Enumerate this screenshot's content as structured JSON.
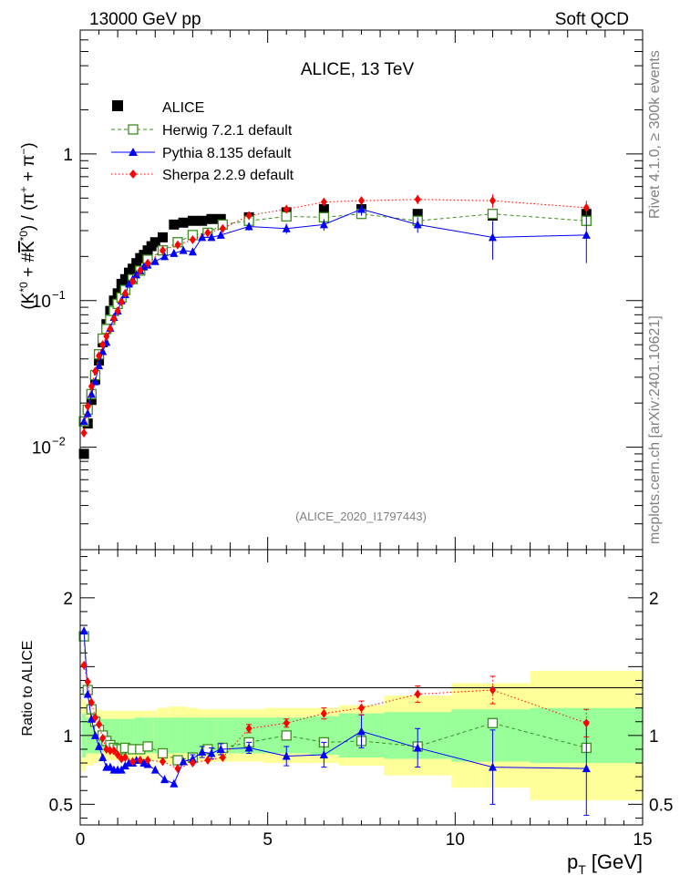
{
  "header": {
    "left": "13000 GeV pp",
    "right": "Soft QCD"
  },
  "side_labels": {
    "rivet": "Rivet 4.1.0, ≥ 300k events",
    "mcplots": "mcplots.cern.ch [arXiv:2401.10621]"
  },
  "chart_data": {
    "type": "scatter",
    "title": "ALICE, 13 TeV",
    "analysis_id": "(ALICE_2020_I1797443)",
    "xlabel": "p",
    "xlabel_sub": "T",
    "xlabel_unit": "[GeV]",
    "ylabel": "(K*0 + #K*0) / (π+ + π−)",
    "ylabel_ratio": "Ratio to ALICE",
    "xlim": [
      0,
      15
    ],
    "ylim": [
      0.002,
      7
    ],
    "ratio_ylim": [
      0.35,
      2.35
    ],
    "xticks": [
      0,
      5,
      10,
      15
    ],
    "yticks": [
      "10^-2",
      "10^-1",
      "1"
    ],
    "ratio_yticks": [
      0.5,
      1,
      2
    ],
    "legend": [
      {
        "label": "ALICE",
        "color": "#000000",
        "marker": "square-filled",
        "line": "none"
      },
      {
        "label": "Herwig 7.2.1 default",
        "color": "#3d8f1e",
        "marker": "square-open",
        "line": "dashed"
      },
      {
        "label": "Pythia 8.135 default",
        "color": "#0000ff",
        "marker": "triangle",
        "line": "solid"
      },
      {
        "label": "Sherpa 2.2.9 default",
        "color": "#ff0000",
        "marker": "diamond",
        "line": "dotted"
      }
    ],
    "data": {
      "name": "ALICE",
      "x": [
        0.1,
        0.2,
        0.3,
        0.4,
        0.5,
        0.6,
        0.7,
        0.8,
        0.9,
        1.0,
        1.1,
        1.2,
        1.3,
        1.4,
        1.5,
        1.6,
        1.7,
        1.8,
        1.9,
        2.0,
        2.2,
        2.5,
        2.75,
        3.0,
        3.25,
        3.5,
        3.75,
        4.5,
        5.5,
        6.5,
        7.5,
        9.0,
        11.0,
        13.5
      ],
      "y": [
        0.009,
        0.0145,
        0.021,
        0.029,
        0.039,
        0.052,
        0.069,
        0.085,
        0.1,
        0.112,
        0.13,
        0.14,
        0.155,
        0.165,
        0.18,
        0.195,
        0.205,
        0.22,
        0.235,
        0.25,
        0.27,
        0.33,
        0.34,
        0.35,
        0.35,
        0.36,
        0.36,
        0.37,
        0.4,
        0.42,
        0.42,
        0.39,
        0.38,
        0.39
      ]
    },
    "series": [
      {
        "name": "Herwig 7.2.1 default",
        "x": [
          0.1,
          0.2,
          0.3,
          0.4,
          0.5,
          0.6,
          0.7,
          0.8,
          0.9,
          1.0,
          1.1,
          1.2,
          1.4,
          1.6,
          1.8,
          2.2,
          2.6,
          3.0,
          3.4,
          3.8,
          4.5,
          5.5,
          6.5,
          7.5,
          9.0,
          11.0,
          13.5
        ],
        "y": [
          0.015,
          0.018,
          0.023,
          0.031,
          0.043,
          0.055,
          0.064,
          0.074,
          0.085,
          0.095,
          0.105,
          0.118,
          0.14,
          0.16,
          0.19,
          0.22,
          0.25,
          0.28,
          0.29,
          0.33,
          0.35,
          0.375,
          0.37,
          0.39,
          0.35,
          0.39,
          0.35
        ],
        "err": [
          0,
          0,
          0,
          0,
          0,
          0,
          0,
          0,
          0,
          0,
          0,
          0,
          0,
          0,
          0,
          0,
          0,
          0,
          0,
          0,
          0,
          0,
          0,
          0,
          0,
          0,
          0
        ],
        "ratio": [
          1.72,
          1.33,
          1.19,
          1.1,
          1.04,
          1.0,
          0.96,
          0.93,
          0.91,
          0.9,
          0.9,
          0.91,
          0.9,
          0.9,
          0.92,
          0.87,
          0.82,
          0.84,
          0.9,
          0.91,
          0.95,
          1.0,
          0.95,
          0.96,
          0.92,
          1.09,
          0.91
        ],
        "ratio_err": [
          0,
          0,
          0,
          0,
          0,
          0,
          0,
          0,
          0,
          0,
          0,
          0,
          0,
          0,
          0,
          0,
          0,
          0,
          0,
          0,
          0,
          0,
          0,
          0,
          0,
          0,
          0
        ]
      },
      {
        "name": "Pythia 8.135 default",
        "x": [
          0.1,
          0.2,
          0.3,
          0.4,
          0.5,
          0.6,
          0.7,
          0.8,
          0.9,
          1.0,
          1.1,
          1.2,
          1.3,
          1.4,
          1.5,
          1.6,
          1.7,
          1.8,
          2.0,
          2.25,
          2.5,
          2.75,
          3.0,
          3.25,
          3.5,
          3.75,
          4.5,
          5.5,
          6.5,
          7.5,
          9.0,
          11.0,
          13.5
        ],
        "y": [
          0.015,
          0.017,
          0.023,
          0.028,
          0.036,
          0.045,
          0.052,
          0.065,
          0.077,
          0.085,
          0.1,
          0.11,
          0.13,
          0.14,
          0.15,
          0.16,
          0.17,
          0.175,
          0.185,
          0.2,
          0.21,
          0.22,
          0.215,
          0.27,
          0.27,
          0.28,
          0.32,
          0.31,
          0.33,
          0.42,
          0.33,
          0.27,
          0.28
        ],
        "err": [
          0,
          0,
          0,
          0,
          0,
          0,
          0,
          0,
          0,
          0,
          0,
          0,
          0,
          0,
          0,
          0,
          0,
          0,
          0,
          0,
          0,
          0,
          0,
          0,
          0,
          0,
          0.02,
          0.025,
          0.03,
          0.04,
          0.04,
          0.08,
          0.1
        ],
        "ratio": [
          1.76,
          1.3,
          1.12,
          1.0,
          0.92,
          0.84,
          0.77,
          0.77,
          0.75,
          0.75,
          0.75,
          0.78,
          0.8,
          0.8,
          0.82,
          0.82,
          0.8,
          0.79,
          0.75,
          0.68,
          0.65,
          0.81,
          0.83,
          0.88,
          0.87,
          0.9,
          0.91,
          0.85,
          0.86,
          1.03,
          0.91,
          0.77,
          0.76
        ],
        "ratio_err": [
          0,
          0,
          0,
          0,
          0,
          0,
          0,
          0,
          0,
          0,
          0,
          0,
          0,
          0,
          0,
          0,
          0,
          0,
          0,
          0,
          0,
          0,
          0.03,
          0.04,
          0.04,
          0.04,
          0.04,
          0.07,
          0.09,
          0.12,
          0.14,
          0.27,
          0.34
        ]
      },
      {
        "name": "Sherpa 2.2.9 default",
        "x": [
          0.1,
          0.2,
          0.3,
          0.4,
          0.5,
          0.6,
          0.7,
          0.8,
          0.9,
          1.0,
          1.1,
          1.2,
          1.4,
          1.6,
          1.8,
          2.2,
          2.6,
          3.0,
          3.4,
          3.8,
          4.5,
          5.5,
          6.5,
          7.5,
          9.0,
          11.0,
          13.5
        ],
        "y": [
          0.0125,
          0.019,
          0.026,
          0.033,
          0.042,
          0.05,
          0.057,
          0.064,
          0.075,
          0.085,
          0.098,
          0.112,
          0.135,
          0.16,
          0.18,
          0.22,
          0.24,
          0.26,
          0.29,
          0.31,
          0.38,
          0.42,
          0.47,
          0.48,
          0.49,
          0.48,
          0.43
        ],
        "err": [
          0,
          0,
          0,
          0,
          0,
          0,
          0,
          0,
          0,
          0,
          0,
          0,
          0,
          0,
          0,
          0,
          0,
          0,
          0,
          0,
          0.02,
          0.025,
          0.025,
          0.03,
          0.035,
          0.05,
          0.05
        ],
        "ratio": [
          1.51,
          1.39,
          1.24,
          1.13,
          1.08,
          0.98,
          0.9,
          0.89,
          0.89,
          0.86,
          0.83,
          0.84,
          0.81,
          0.82,
          0.82,
          0.81,
          0.76,
          0.8,
          0.82,
          0.84,
          1.05,
          1.09,
          1.16,
          1.2,
          1.3,
          1.33,
          1.09
        ],
        "ratio_err": [
          0,
          0,
          0,
          0,
          0,
          0,
          0,
          0,
          0,
          0,
          0,
          0,
          0,
          0,
          0,
          0,
          0,
          0,
          0,
          0,
          0.03,
          0.03,
          0.04,
          0.05,
          0.06,
          0.1,
          0.1
        ]
      }
    ],
    "ratio_bands": {
      "x_edges": [
        0.05,
        0.15,
        0.25,
        0.35,
        0.45,
        0.55,
        0.65,
        0.75,
        0.85,
        0.95,
        1.05,
        1.15,
        1.25,
        1.35,
        1.45,
        1.55,
        1.65,
        1.75,
        1.85,
        1.95,
        2.05,
        2.35,
        2.65,
        2.85,
        3.15,
        3.35,
        3.65,
        3.85,
        4.9,
        6.1,
        6.9,
        8.1,
        9.9,
        12.0,
        15.0
      ],
      "inner": [
        0.16,
        0.13,
        0.13,
        0.13,
        0.13,
        0.12,
        0.12,
        0.12,
        0.12,
        0.12,
        0.12,
        0.12,
        0.12,
        0.12,
        0.13,
        0.13,
        0.13,
        0.13,
        0.13,
        0.13,
        0.13,
        0.13,
        0.13,
        0.13,
        0.13,
        0.13,
        0.13,
        0.13,
        0.13,
        0.14,
        0.16,
        0.17,
        0.19,
        0.2
      ],
      "outer": [
        0.26,
        0.22,
        0.22,
        0.2,
        0.19,
        0.18,
        0.18,
        0.18,
        0.18,
        0.18,
        0.18,
        0.18,
        0.18,
        0.18,
        0.18,
        0.18,
        0.18,
        0.18,
        0.18,
        0.18,
        0.2,
        0.21,
        0.21,
        0.2,
        0.19,
        0.19,
        0.19,
        0.19,
        0.2,
        0.2,
        0.22,
        0.29,
        0.38,
        0.47
      ]
    }
  }
}
